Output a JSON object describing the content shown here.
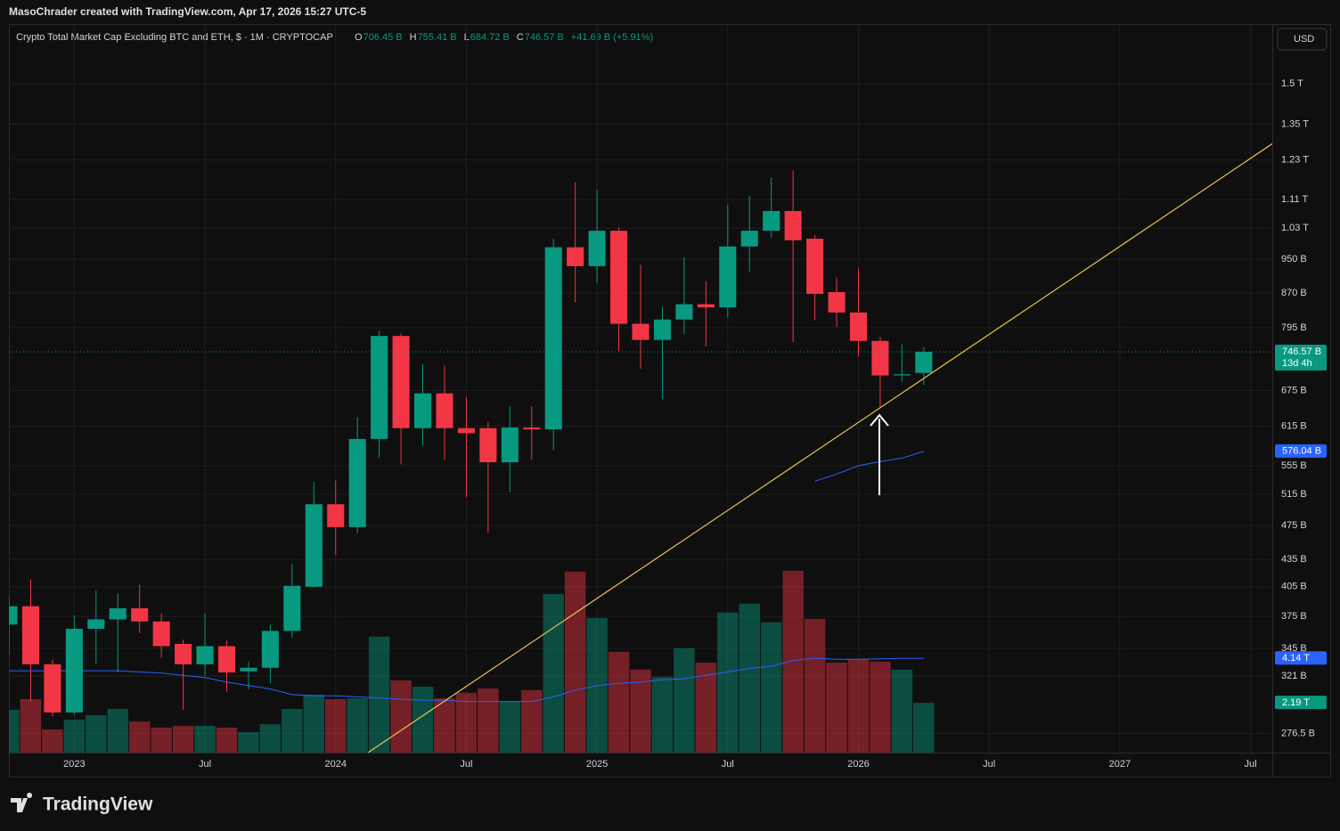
{
  "header": {
    "attribution": "MasoChrader created with TradingView.com, Apr 17, 2026 15:27 UTC-5",
    "currency_button": "USD",
    "logo": "TradingView"
  },
  "chart_data": {
    "type": "candlestick",
    "title": "Crypto Total Market Cap Excluding BTC and ETH, $ · 1M · CRYPTOCAP",
    "legend": [
      {
        "name": "O",
        "label": "706.45 B"
      },
      {
        "name": "H",
        "label": "755.41 B"
      },
      {
        "name": "L",
        "label": "684.72 B"
      },
      {
        "name": "C",
        "label": "746.57 B"
      }
    ],
    "change": "+41.69 B (+5.91%)",
    "x": [
      "2022-10",
      "2022-11",
      "2022-12",
      "2023-01",
      "2023-02",
      "2023-03",
      "2023-04",
      "2023-05",
      "2023-06",
      "2023-07",
      "2023-08",
      "2023-09",
      "2023-10",
      "2023-11",
      "2023-12",
      "2024-01",
      "2024-02",
      "2024-03",
      "2024-04",
      "2024-05",
      "2024-06",
      "2024-07",
      "2024-08",
      "2024-09",
      "2024-10",
      "2024-11",
      "2024-12",
      "2025-01",
      "2025-02",
      "2025-03",
      "2025-04",
      "2025-05",
      "2025-06",
      "2025-07",
      "2025-08",
      "2025-09",
      "2025-10",
      "2025-11",
      "2025-12",
      "2026-01",
      "2026-02",
      "2026-03",
      "2026-04"
    ],
    "open": [
      367,
      385,
      331,
      292,
      363,
      372,
      383,
      370,
      349,
      331,
      347,
      325,
      328,
      361,
      405,
      502,
      473,
      595,
      778,
      612,
      670,
      612,
      612,
      560,
      613,
      610,
      980,
      933,
      1023,
      803,
      770,
      812,
      845,
      838,
      982,
      1023,
      1077,
      1002,
      872,
      827,
      768,
      702,
      706.45
    ],
    "high": [
      396,
      413,
      335,
      376,
      401,
      398,
      407,
      378,
      353,
      378,
      352,
      333,
      367,
      430,
      532,
      534,
      630,
      788,
      783,
      723,
      720,
      663,
      622,
      648,
      648,
      1002,
      1160,
      1138,
      1032,
      936,
      840,
      955,
      897,
      1095,
      1120,
      1175,
      1197,
      1012,
      906,
      927,
      776,
      762,
      755.41
    ],
    "low": [
      339,
      300,
      289,
      290,
      331,
      324,
      359,
      337,
      294,
      321,
      308,
      310,
      315,
      355,
      404,
      440,
      466,
      567,
      557,
      585,
      564,
      511,
      466,
      518,
      564,
      578,
      849,
      893,
      748,
      714,
      660,
      782,
      757,
      816,
      920,
      1005,
      766,
      811,
      797,
      738,
      645,
      691,
      684.72
    ],
    "close": [
      385,
      331,
      292,
      363,
      372,
      383,
      370,
      347,
      331,
      347,
      324,
      328,
      361,
      406,
      502,
      473,
      595,
      778,
      612,
      670,
      612,
      604,
      560,
      613,
      610,
      980,
      933,
      1023,
      803,
      770,
      812,
      845,
      838,
      982,
      1023,
      1077,
      998,
      868,
      827,
      768,
      702,
      704,
      746.57
    ],
    "close_label": "746.57 B",
    "countdown": "13d 4h",
    "up_color": "#089981",
    "down_color": "#f23645",
    "moving_average": {
      "color": "#2962ff",
      "values": [
        null,
        null,
        null,
        null,
        null,
        null,
        null,
        null,
        null,
        null,
        null,
        null,
        null,
        null,
        null,
        null,
        null,
        null,
        null,
        null,
        null,
        null,
        null,
        null,
        null,
        null,
        null,
        null,
        null,
        null,
        null,
        null,
        null,
        null,
        null,
        null,
        null,
        533,
        543,
        555,
        561,
        566,
        576.04
      ],
      "value_label": "576.04 B"
    },
    "volume": {
      "values": [
        1.88,
        2.35,
        1.02,
        1.45,
        1.65,
        1.92,
        1.37,
        1.1,
        1.18,
        1.18,
        1.1,
        0.9,
        1.25,
        1.92,
        2.55,
        2.35,
        2.39,
        5.1,
        3.18,
        2.9,
        2.39,
        2.63,
        2.82,
        2.24,
        2.75,
        6.98,
        7.96,
        5.92,
        4.43,
        3.65,
        3.33,
        4.59,
        3.96,
        6.16,
        6.55,
        5.73,
        8.0,
        5.88,
        3.96,
        4.12,
        4.0,
        3.65,
        2.19
      ],
      "value_label": "2.19 T",
      "ylim": [
        0,
        32
      ]
    },
    "volume_ma": {
      "color": "#2962ff",
      "values": [
        3.6,
        3.6,
        3.6,
        3.6,
        3.6,
        3.6,
        3.55,
        3.5,
        3.4,
        3.3,
        3.1,
        2.95,
        2.8,
        2.55,
        2.5,
        2.5,
        2.45,
        2.4,
        2.35,
        2.3,
        2.3,
        2.25,
        2.25,
        2.25,
        2.25,
        2.45,
        2.75,
        2.95,
        3.05,
        3.1,
        3.2,
        3.25,
        3.4,
        3.55,
        3.7,
        3.8,
        4.05,
        4.15,
        4.1,
        4.1,
        4.12,
        4.14,
        4.14
      ],
      "value_label": "4.14 T"
    },
    "ylim": [
      263,
      1748
    ],
    "log_scale": true,
    "grid": true,
    "yticks": [
      {
        "value": 1500,
        "label": "1.5 T"
      },
      {
        "value": 1350,
        "label": "1.35 T"
      },
      {
        "value": 1230,
        "label": "1.23 T"
      },
      {
        "value": 1110,
        "label": "1.11 T"
      },
      {
        "value": 1030,
        "label": "1.03 T"
      },
      {
        "value": 950,
        "label": "950 B"
      },
      {
        "value": 870,
        "label": "870 B"
      },
      {
        "value": 795,
        "label": "795 B"
      },
      {
        "value": 675,
        "label": "675 B"
      },
      {
        "value": 615,
        "label": "615 B"
      },
      {
        "value": 555,
        "label": "555 B"
      },
      {
        "value": 515,
        "label": "515 B"
      },
      {
        "value": 475,
        "label": "475 B"
      },
      {
        "value": 435,
        "label": "435 B"
      },
      {
        "value": 405,
        "label": "405 B"
      },
      {
        "value": 375,
        "label": "375 B"
      },
      {
        "value": 345,
        "label": "345 B"
      },
      {
        "value": 321,
        "label": "321 B"
      },
      {
        "value": 276.5,
        "label": "276.5 B"
      }
    ],
    "xlim": [
      "2022-10",
      "2027-08"
    ],
    "xticks": [
      {
        "value": "2023-01",
        "label": "2023"
      },
      {
        "value": "2023-07",
        "label": "Jul"
      },
      {
        "value": "2024-01",
        "label": "2024"
      },
      {
        "value": "2024-07",
        "label": "Jul"
      },
      {
        "value": "2025-01",
        "label": "2025"
      },
      {
        "value": "2025-07",
        "label": "Jul"
      },
      {
        "value": "2026-01",
        "label": "2026"
      },
      {
        "value": "2026-07",
        "label": "Jul"
      },
      {
        "value": "2027-01",
        "label": "2027"
      },
      {
        "value": "2027-07",
        "label": "Jul"
      }
    ]
  }
}
